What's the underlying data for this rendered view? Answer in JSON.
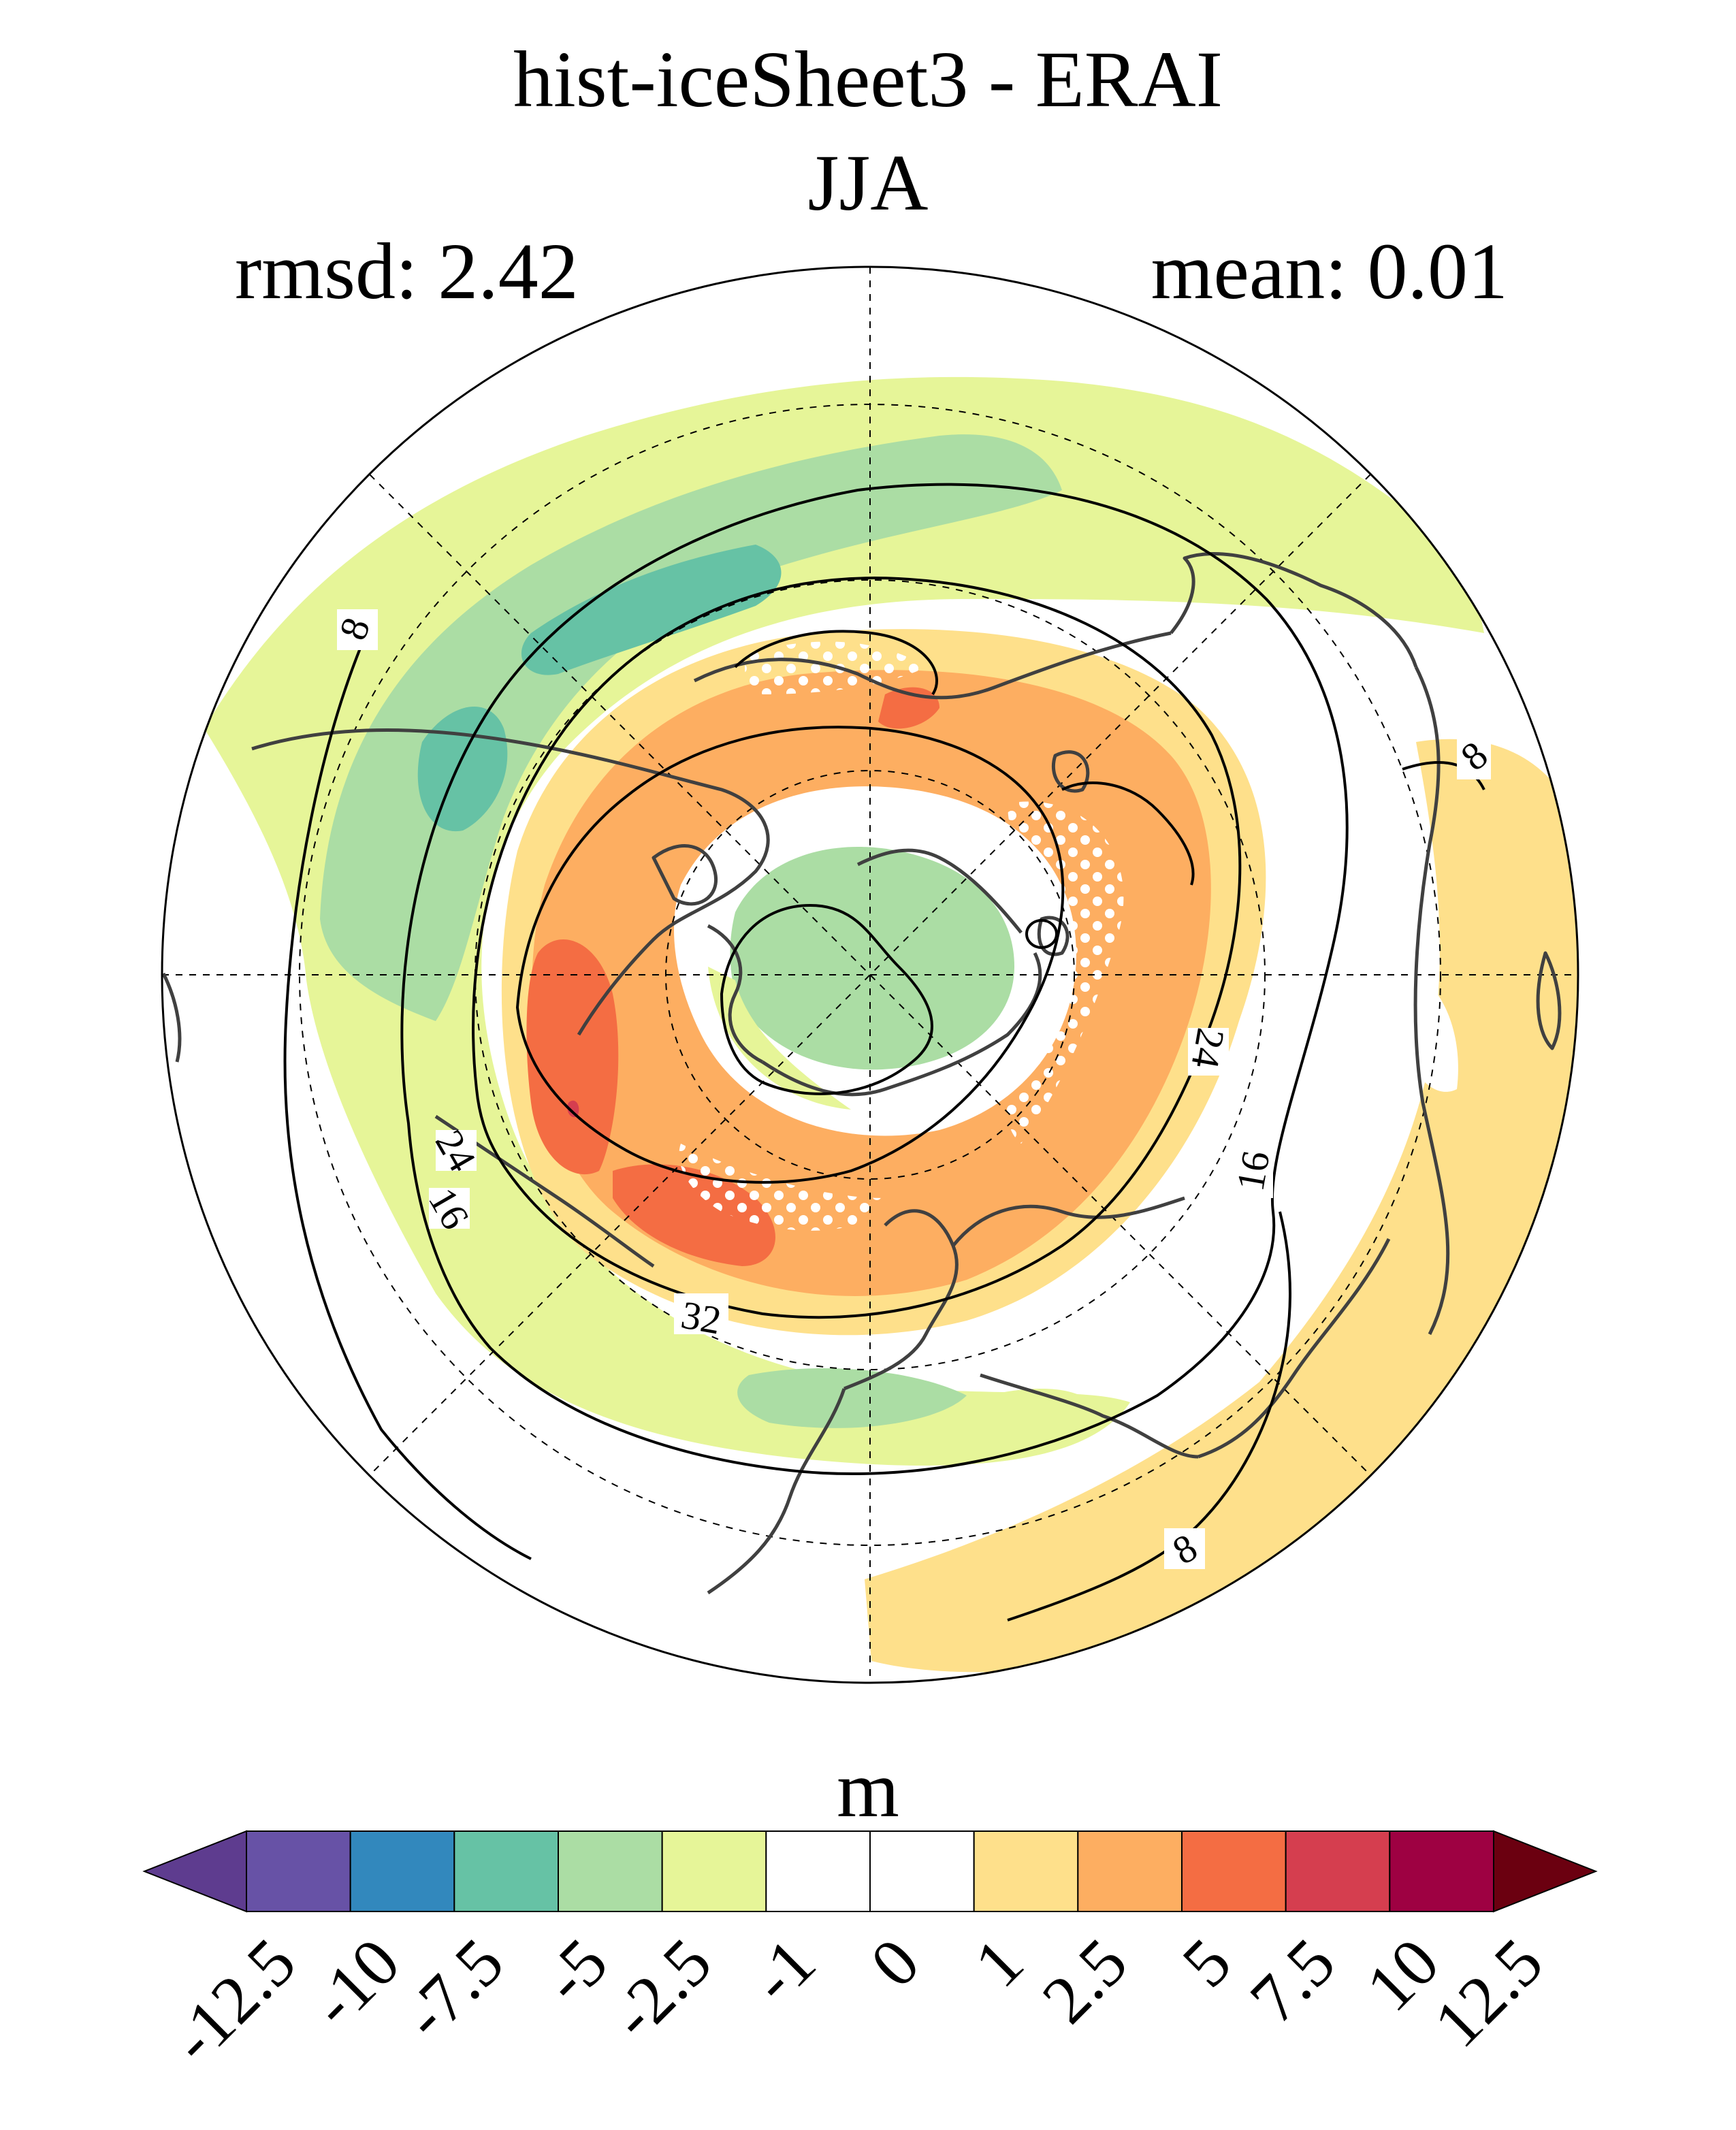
{
  "title": {
    "line1": "hist-iceSheet3 - ERAI",
    "line2": "JJA"
  },
  "stats": {
    "rmsd": "rmsd: 2.42",
    "mean": "mean: 0.01"
  },
  "contour_labels": [
    "8",
    "16",
    "24",
    "32",
    "24",
    "16",
    "8",
    "8"
  ],
  "colorbar": {
    "unit": "m",
    "levels": [
      "-12.5",
      "-10",
      "-7.5",
      "-5",
      "-2.5",
      "-1",
      "0",
      "1",
      "2.5",
      "5",
      "7.5",
      "10",
      "12.5"
    ],
    "colors": [
      "#5e3c8f",
      "#6752a6",
      "#3288bd",
      "#66c2a5",
      "#abdda4",
      "#e6f598",
      "#ffffff",
      "#ffffff",
      "#fee08b",
      "#fdae61",
      "#f46d43",
      "#d53e4f",
      "#9e0142",
      "#6b0010"
    ]
  }
}
